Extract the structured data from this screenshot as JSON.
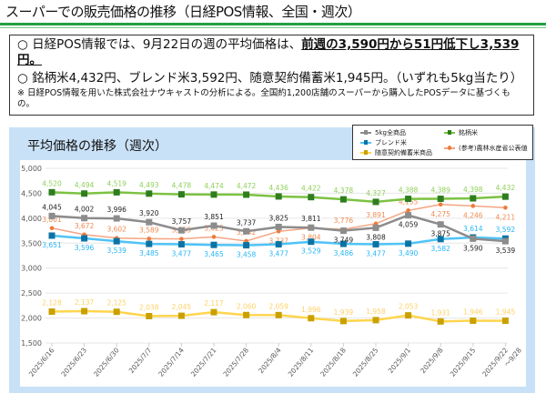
{
  "header": {
    "title": "スーパーでの販売価格の推移（日経POS情報、全国・週次）"
  },
  "summary": {
    "line1_prefix": "○  日経POS情報では、9月22日の週の平均価格は、",
    "line1_emphasis": "前週の3,590円から51円低下し3,539円。",
    "line2": "○  銘柄米4,432円、ブレンド米3,592円、随意契約備蓄米1,945円。（いずれも5kg当たり）",
    "note": "※  日経POS情報を用いた株式会社ナウキャストの分析による。全国約1,200店舗のスーパーから購入したPOSデータに基づくもの。"
  },
  "chart_data": {
    "type": "line",
    "title": "平均価格の推移（週次）",
    "xlabel": "",
    "ylabel": "",
    "ylim": [
      1500,
      5000
    ],
    "yticks": [
      1500,
      2000,
      2500,
      3000,
      3500,
      4000,
      4500,
      5000
    ],
    "ytick_labels": [
      "1,500",
      "2,000",
      "2,500",
      "3,000",
      "3,500",
      "4,000",
      "4,500",
      "5,000"
    ],
    "grid": true,
    "legend_position": "top-right",
    "categories": [
      "2025/6/16",
      "2025/6/23",
      "2025/6/30",
      "2025/7/7",
      "2025/7/14",
      "2025/7/21",
      "2025/7/28",
      "2025/8/4",
      "2025/8/11",
      "2025/8/18",
      "2025/8/25",
      "2025/9/1",
      "2025/9/8",
      "2025/9/15",
      "2025/9/22\n～9/28"
    ],
    "series": [
      {
        "name": "5kg全商品",
        "color": "#8c8c8c",
        "label_color": "#222222",
        "marker": "square",
        "values": [
          4045,
          4002,
          3996,
          3920,
          3757,
          3851,
          3737,
          3825,
          3811,
          3749,
          3808,
          4059,
          3875,
          3590,
          3539
        ]
      },
      {
        "name": "銘柄米",
        "color": "#7cc242",
        "marker_color": "#2e7d1e",
        "label_color": "#8fd05a",
        "marker": "square",
        "values": [
          4520,
          4494,
          4519,
          4493,
          4478,
          4474,
          4472,
          4436,
          4422,
          4378,
          4327,
          4388,
          4389,
          4398,
          4432
        ]
      },
      {
        "name": "ブレンド米",
        "color": "#4fc3f7",
        "marker_color": "#0b73a3",
        "label_color": "#29b6f6",
        "marker": "square",
        "values": [
          3651,
          3596,
          3539,
          3485,
          3477,
          3465,
          3458,
          3477,
          3529,
          3486,
          3477,
          3490,
          3582,
          3614,
          3592
        ]
      },
      {
        "name": "(参考)農林水産省公表値",
        "color": "#f4a582",
        "marker_color": "#ee7a3a",
        "label_color": "#f08a50",
        "marker": "circle",
        "values": [
          3801,
          3672,
          3602,
          3589,
          3585,
          3625,
          3542,
          3737,
          3804,
          3776,
          3891,
          4155,
          4275,
          4246,
          4211
        ]
      },
      {
        "name": "随意契約備蓄米商品",
        "color": "#ffd54f",
        "marker_color": "#c9a000",
        "label_color": "#ffd166",
        "marker": "square",
        "values": [
          2128,
          2137,
          2125,
          2038,
          2045,
          2117,
          2060,
          2059,
          1996,
          1939,
          1958,
          2053,
          1931,
          1946,
          1945
        ]
      }
    ]
  }
}
